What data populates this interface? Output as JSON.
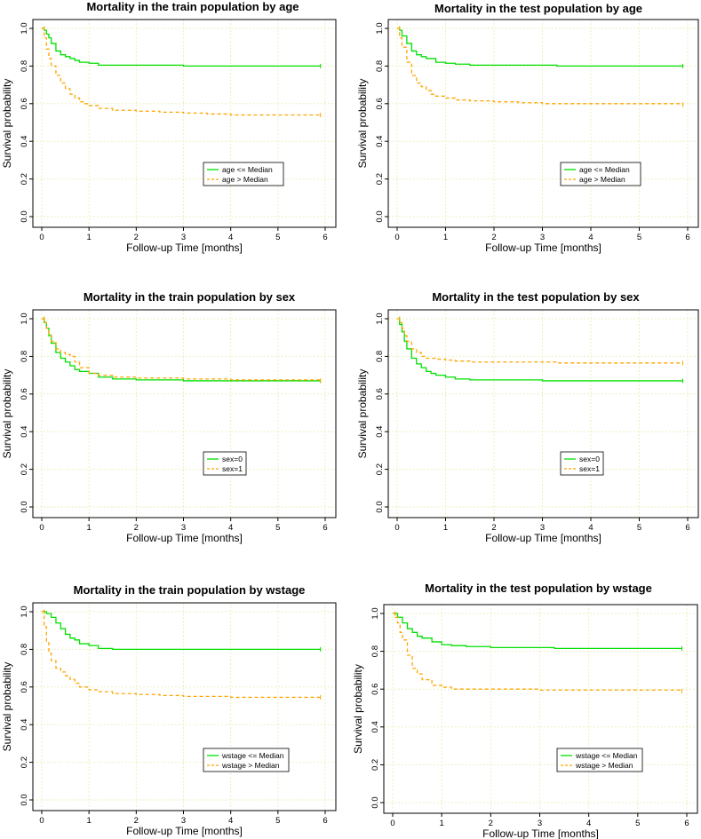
{
  "colors": {
    "green": "#00e000",
    "orange": "#ffa500",
    "grid": "#eeeec0"
  },
  "chart_data": [
    {
      "type": "line",
      "title": "Mortality in the train population by age",
      "xlabel": "Follow-up Time [months]",
      "ylabel": "Survival probability",
      "xlim": [
        0,
        6
      ],
      "ylim": [
        0,
        1
      ],
      "xticks": [
        "0",
        "1",
        "2",
        "3",
        "4",
        "5",
        "6"
      ],
      "yticks": [
        "0.0",
        "0.2",
        "0.4",
        "0.6",
        "0.8",
        "1.0"
      ],
      "grid": true,
      "legend_position": "bottom-right",
      "series": [
        {
          "name": "age  <= Median",
          "color": "#00e000",
          "dash": false,
          "x": [
            0,
            0.05,
            0.1,
            0.15,
            0.2,
            0.3,
            0.4,
            0.5,
            0.6,
            0.7,
            0.8,
            1.0,
            1.2,
            1.5,
            2.0,
            2.5,
            2.9,
            3.0,
            4.0,
            5.0,
            5.9
          ],
          "y": [
            1.0,
            0.99,
            0.97,
            0.95,
            0.92,
            0.88,
            0.86,
            0.85,
            0.84,
            0.83,
            0.82,
            0.815,
            0.805,
            0.805,
            0.805,
            0.805,
            0.805,
            0.8,
            0.8,
            0.8,
            0.8
          ]
        },
        {
          "name": "age  > Median",
          "color": "#ffa500",
          "dash": true,
          "x": [
            0,
            0.05,
            0.1,
            0.15,
            0.2,
            0.3,
            0.4,
            0.5,
            0.6,
            0.7,
            0.8,
            0.9,
            1.0,
            1.2,
            1.5,
            2.0,
            2.5,
            3.0,
            3.5,
            4.0,
            5.0,
            5.9
          ],
          "y": [
            1.0,
            0.95,
            0.89,
            0.84,
            0.8,
            0.75,
            0.71,
            0.68,
            0.65,
            0.63,
            0.61,
            0.6,
            0.59,
            0.575,
            0.565,
            0.56,
            0.555,
            0.55,
            0.545,
            0.54,
            0.54,
            0.54
          ]
        }
      ]
    },
    {
      "type": "line",
      "title": "Mortality in the test population by age",
      "xlabel": "Follow-up Time [months]",
      "ylabel": "Survival probability",
      "xlim": [
        0,
        6
      ],
      "ylim": [
        0,
        1
      ],
      "xticks": [
        "0",
        "1",
        "2",
        "3",
        "4",
        "5",
        "6"
      ],
      "yticks": [
        "0.0",
        "0.2",
        "0.4",
        "0.6",
        "0.8",
        "1.0"
      ],
      "grid": true,
      "legend_position": "bottom-right",
      "series": [
        {
          "name": "age  <= Median",
          "color": "#00e000",
          "dash": false,
          "x": [
            0,
            0.05,
            0.1,
            0.2,
            0.3,
            0.4,
            0.5,
            0.6,
            0.8,
            1.0,
            1.2,
            1.5,
            2.0,
            3.0,
            3.3,
            4.0,
            5.0,
            5.9
          ],
          "y": [
            1.0,
            0.99,
            0.96,
            0.92,
            0.88,
            0.86,
            0.85,
            0.84,
            0.82,
            0.815,
            0.81,
            0.805,
            0.805,
            0.805,
            0.8,
            0.8,
            0.8,
            0.8
          ]
        },
        {
          "name": "age  > Median",
          "color": "#ffa500",
          "dash": true,
          "x": [
            0,
            0.05,
            0.1,
            0.2,
            0.3,
            0.4,
            0.5,
            0.6,
            0.7,
            0.8,
            1.0,
            1.2,
            1.5,
            2.0,
            2.5,
            3.0,
            4.0,
            5.0,
            5.9
          ],
          "y": [
            1.0,
            0.95,
            0.9,
            0.82,
            0.75,
            0.71,
            0.69,
            0.67,
            0.65,
            0.64,
            0.63,
            0.62,
            0.615,
            0.61,
            0.605,
            0.6,
            0.6,
            0.6,
            0.595
          ]
        }
      ]
    },
    {
      "type": "line",
      "title": "Mortality in the train population by sex",
      "xlabel": "Follow-up Time [months]",
      "ylabel": "Survival probability",
      "xlim": [
        0,
        6
      ],
      "ylim": [
        0,
        1
      ],
      "xticks": [
        "0",
        "1",
        "2",
        "3",
        "4",
        "5",
        "6"
      ],
      "yticks": [
        "0.0",
        "0.2",
        "0.4",
        "0.6",
        "0.8",
        "1.0"
      ],
      "grid": true,
      "legend_position": "bottom-right",
      "series": [
        {
          "name": "sex=0",
          "color": "#00e000",
          "dash": false,
          "x": [
            0,
            0.05,
            0.1,
            0.15,
            0.2,
            0.3,
            0.4,
            0.5,
            0.6,
            0.7,
            0.8,
            1.0,
            1.2,
            1.5,
            2.0,
            3.0,
            4.0,
            5.0,
            5.9
          ],
          "y": [
            1.0,
            0.98,
            0.95,
            0.91,
            0.87,
            0.82,
            0.79,
            0.77,
            0.75,
            0.73,
            0.72,
            0.71,
            0.69,
            0.68,
            0.675,
            0.67,
            0.67,
            0.67,
            0.67
          ]
        },
        {
          "name": "sex=1",
          "color": "#ffa500",
          "dash": true,
          "x": [
            0,
            0.05,
            0.1,
            0.15,
            0.2,
            0.3,
            0.4,
            0.5,
            0.6,
            0.7,
            0.8,
            1.0,
            1.2,
            1.5,
            2.0,
            3.0,
            4.0,
            5.0,
            5.9
          ],
          "y": [
            1.0,
            0.98,
            0.95,
            0.92,
            0.88,
            0.84,
            0.82,
            0.81,
            0.8,
            0.77,
            0.74,
            0.71,
            0.7,
            0.69,
            0.685,
            0.68,
            0.675,
            0.675,
            0.67
          ]
        }
      ]
    },
    {
      "type": "line",
      "title": "Mortality in the test population by sex",
      "xlabel": "Follow-up Time [months]",
      "ylabel": "Survival probability",
      "xlim": [
        0,
        6
      ],
      "ylim": [
        0,
        1
      ],
      "xticks": [
        "0",
        "1",
        "2",
        "3",
        "4",
        "5",
        "6"
      ],
      "yticks": [
        "0.0",
        "0.2",
        "0.4",
        "0.6",
        "0.8",
        "1.0"
      ],
      "grid": true,
      "legend_position": "bottom-right",
      "series": [
        {
          "name": "sex=0",
          "color": "#00e000",
          "dash": false,
          "x": [
            0,
            0.05,
            0.1,
            0.15,
            0.2,
            0.3,
            0.4,
            0.5,
            0.6,
            0.7,
            0.8,
            1.0,
            1.2,
            1.5,
            2.0,
            3.0,
            4.0,
            5.0,
            5.9
          ],
          "y": [
            1.0,
            0.97,
            0.93,
            0.88,
            0.84,
            0.79,
            0.76,
            0.74,
            0.72,
            0.71,
            0.7,
            0.69,
            0.68,
            0.675,
            0.675,
            0.67,
            0.67,
            0.67,
            0.67
          ]
        },
        {
          "name": "sex=1",
          "color": "#ffa500",
          "dash": true,
          "x": [
            0,
            0.05,
            0.1,
            0.15,
            0.2,
            0.3,
            0.4,
            0.5,
            0.6,
            0.8,
            1.0,
            1.2,
            1.5,
            2.0,
            3.0,
            3.3,
            4.0,
            5.0,
            5.9
          ],
          "y": [
            1.0,
            0.98,
            0.95,
            0.91,
            0.88,
            0.84,
            0.82,
            0.8,
            0.79,
            0.785,
            0.78,
            0.775,
            0.77,
            0.77,
            0.77,
            0.765,
            0.765,
            0.765,
            0.765
          ]
        }
      ]
    },
    {
      "type": "line",
      "title": "Mortality in the train population by wstage",
      "xlabel": "Follow-up Time [months]",
      "ylabel": "Survival probability",
      "xlim": [
        0,
        6
      ],
      "ylim": [
        0,
        1
      ],
      "xticks": [
        "0",
        "1",
        "2",
        "3",
        "4",
        "5",
        "6"
      ],
      "yticks": [
        "0.0",
        "0.2",
        "0.4",
        "0.6",
        "0.8",
        "1.0"
      ],
      "grid": true,
      "legend_position": "bottom-right",
      "series": [
        {
          "name": "wstage  <= Median",
          "color": "#00e000",
          "dash": false,
          "x": [
            0,
            0.05,
            0.1,
            0.2,
            0.3,
            0.4,
            0.5,
            0.6,
            0.7,
            0.8,
            1.0,
            1.2,
            1.5,
            2.0,
            3.0,
            4.0,
            5.0,
            5.9
          ],
          "y": [
            1.0,
            1.0,
            0.99,
            0.97,
            0.94,
            0.91,
            0.88,
            0.86,
            0.85,
            0.83,
            0.82,
            0.805,
            0.8,
            0.8,
            0.8,
            0.8,
            0.8,
            0.8
          ]
        },
        {
          "name": "wstage  > Median",
          "color": "#ffa500",
          "dash": true,
          "x": [
            0,
            0.05,
            0.1,
            0.15,
            0.2,
            0.3,
            0.4,
            0.5,
            0.6,
            0.7,
            0.8,
            1.0,
            1.2,
            1.5,
            2.0,
            2.5,
            3.0,
            4.0,
            5.0,
            5.9
          ],
          "y": [
            1.0,
            0.92,
            0.84,
            0.78,
            0.74,
            0.7,
            0.68,
            0.66,
            0.64,
            0.62,
            0.6,
            0.585,
            0.575,
            0.565,
            0.56,
            0.555,
            0.55,
            0.545,
            0.545,
            0.545
          ]
        }
      ]
    },
    {
      "type": "line",
      "title": "Mortality in the test population by wstage",
      "xlabel": "Follow-up Time [months]",
      "ylabel": "Survival probability",
      "xlim": [
        0,
        6
      ],
      "ylim": [
        0,
        1
      ],
      "xticks": [
        "0",
        "1",
        "2",
        "3",
        "4",
        "5",
        "6"
      ],
      "yticks": [
        "0.0",
        "0.2",
        "0.4",
        "0.6",
        "0.8",
        "1.0"
      ],
      "grid": true,
      "legend_position": "bottom-right",
      "series": [
        {
          "name": "wstage  <= Median",
          "color": "#00e000",
          "dash": false,
          "x": [
            0,
            0.05,
            0.1,
            0.2,
            0.3,
            0.4,
            0.5,
            0.6,
            0.8,
            1.0,
            1.2,
            1.5,
            2.0,
            3.0,
            3.3,
            4.0,
            5.0,
            5.9
          ],
          "y": [
            1.0,
            1.0,
            0.98,
            0.95,
            0.92,
            0.9,
            0.88,
            0.87,
            0.85,
            0.835,
            0.83,
            0.825,
            0.82,
            0.82,
            0.815,
            0.815,
            0.815,
            0.815
          ]
        },
        {
          "name": "wstage  > Median",
          "color": "#ffa500",
          "dash": true,
          "x": [
            0,
            0.05,
            0.1,
            0.15,
            0.2,
            0.3,
            0.4,
            0.5,
            0.6,
            0.8,
            1.0,
            1.2,
            1.5,
            2.0,
            3.0,
            4.0,
            5.0,
            5.9
          ],
          "y": [
            1.0,
            0.98,
            0.95,
            0.9,
            0.86,
            0.78,
            0.71,
            0.68,
            0.65,
            0.62,
            0.61,
            0.6,
            0.6,
            0.6,
            0.595,
            0.595,
            0.595,
            0.59
          ]
        }
      ]
    }
  ]
}
